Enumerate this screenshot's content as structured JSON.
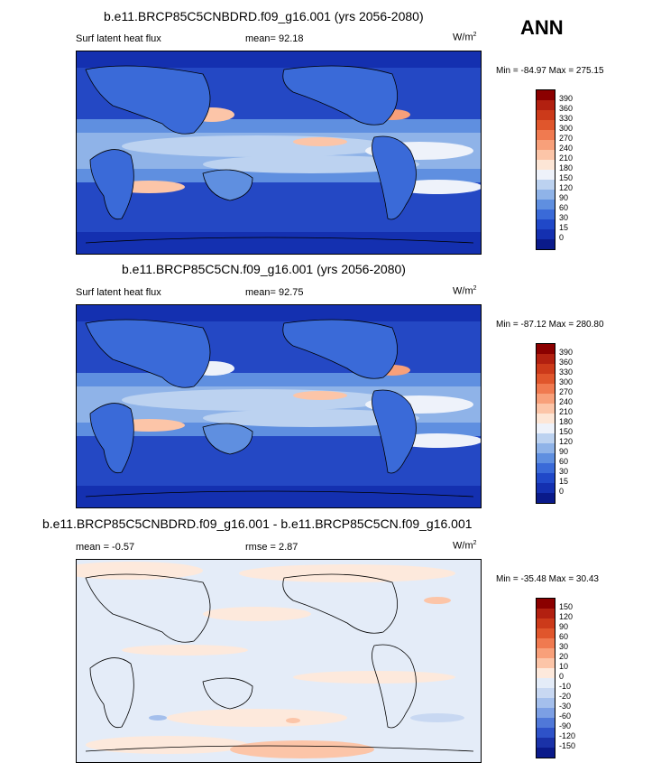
{
  "season": "ANN",
  "panels": [
    {
      "title": "b.e11.BRCP85C5CNBDRD.f09_g16.001 (yrs 2056-2080)",
      "left_label": "Surf latent heat flux",
      "mean_label": "mean=  92.18",
      "unit_base": "W/m",
      "unit_exp": "2",
      "minmax": "Min = -84.97 Max = 275.15",
      "levels": [
        "390",
        "360",
        "330",
        "300",
        "270",
        "240",
        "210",
        "180",
        "150",
        "120",
        "90",
        "60",
        "30",
        "15",
        "0"
      ],
      "colors": [
        "#8b0000",
        "#b22010",
        "#cc3a1a",
        "#e0562c",
        "#f07a50",
        "#f8a07a",
        "#fcc5a8",
        "#fde6d6",
        "#eef2fa",
        "#bcd2f0",
        "#8fb3e8",
        "#5f8fe0",
        "#3a6ad8",
        "#2048c8",
        "#1430b0",
        "#0a1a8a"
      ]
    },
    {
      "title": "b.e11.BRCP85C5CN.f09_g16.001 (yrs 2056-2080)",
      "left_label": "Surf latent heat flux",
      "mean_label": "mean=  92.75",
      "unit_base": "W/m",
      "unit_exp": "2",
      "minmax": "Min = -87.12 Max = 280.80",
      "levels": [
        "390",
        "360",
        "330",
        "300",
        "270",
        "240",
        "210",
        "180",
        "150",
        "120",
        "90",
        "60",
        "30",
        "15",
        "0"
      ],
      "colors": [
        "#8b0000",
        "#b22010",
        "#cc3a1a",
        "#e0562c",
        "#f07a50",
        "#f8a07a",
        "#fcc5a8",
        "#fde6d6",
        "#eef2fa",
        "#bcd2f0",
        "#8fb3e8",
        "#5f8fe0",
        "#3a6ad8",
        "#2048c8",
        "#1430b0",
        "#0a1a8a"
      ]
    },
    {
      "title": "b.e11.BRCP85C5CNBDRD.f09_g16.001 - b.e11.BRCP85C5CN.f09_g16.001",
      "left_label": "mean =  -0.57",
      "mean_label": "rmse =   2.87",
      "unit_base": "W/m",
      "unit_exp": "2",
      "minmax": "Min = -35.48 Max = 30.43",
      "levels": [
        "150",
        "120",
        "90",
        "60",
        "30",
        "20",
        "10",
        "0",
        "-10",
        "-20",
        "-30",
        "-60",
        "-90",
        "-120",
        "-150"
      ],
      "colors": [
        "#8b0000",
        "#b22010",
        "#cc3a1a",
        "#e0562c",
        "#f07a50",
        "#f8a07a",
        "#fcc5a8",
        "#fde9dc",
        "#e4ecf8",
        "#c8d8f2",
        "#a4bfec",
        "#7c9fe4",
        "#5078d8",
        "#2e52c8",
        "#1a32a8",
        "#0a1a8a"
      ]
    }
  ]
}
